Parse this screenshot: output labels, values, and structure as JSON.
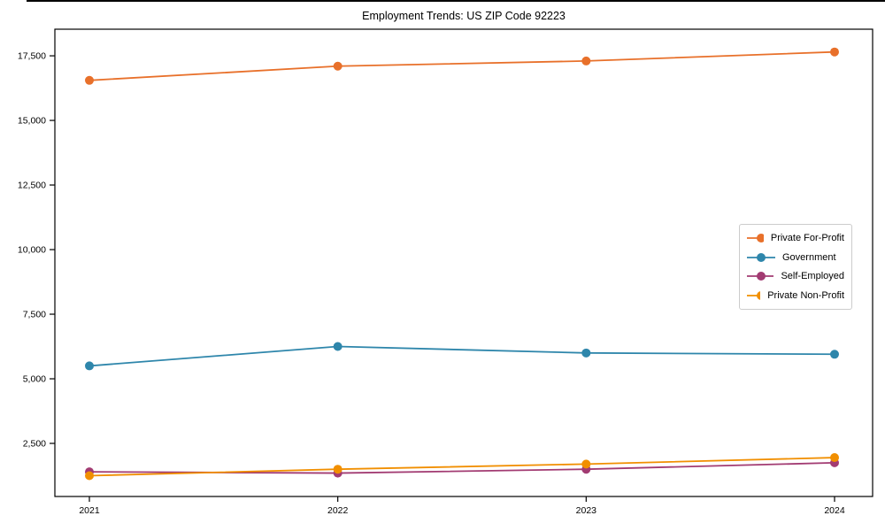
{
  "chart_data": {
    "type": "line",
    "title": "Employment Trends: US ZIP Code 92223",
    "x": [
      2021,
      2022,
      2023,
      2024
    ],
    "x_tick_labels": [
      "2021",
      "2022",
      "2023",
      "2024"
    ],
    "series": [
      {
        "name": "Private For-Profit",
        "color": "#E8702A",
        "values": [
          16550,
          17100,
          17300,
          17650
        ]
      },
      {
        "name": "Government",
        "color": "#2E86AB",
        "values": [
          5500,
          6250,
          6000,
          5950
        ]
      },
      {
        "name": "Self-Employed",
        "color": "#A23B72",
        "values": [
          1400,
          1350,
          1500,
          1750
        ]
      },
      {
        "name": "Private Non-Profit",
        "color": "#F18F01",
        "values": [
          1250,
          1500,
          1700,
          1950
        ]
      }
    ],
    "yticks": [
      {
        "value": 2500,
        "label": "2,500"
      },
      {
        "value": 5000,
        "label": "5,000"
      },
      {
        "value": 7500,
        "label": "7,500"
      },
      {
        "value": 10000,
        "label": "10,000"
      },
      {
        "value": 12500,
        "label": "12,500"
      },
      {
        "value": 15000,
        "label": "15,000"
      },
      {
        "value": 17500,
        "label": "17,500"
      }
    ],
    "ylim": [
      445,
      18530
    ],
    "xlabel": "",
    "ylabel": "",
    "grid": false,
    "legend_position": "right-center",
    "marker": "circle",
    "axis_color": "#000000",
    "background_color": "#ffffff"
  }
}
